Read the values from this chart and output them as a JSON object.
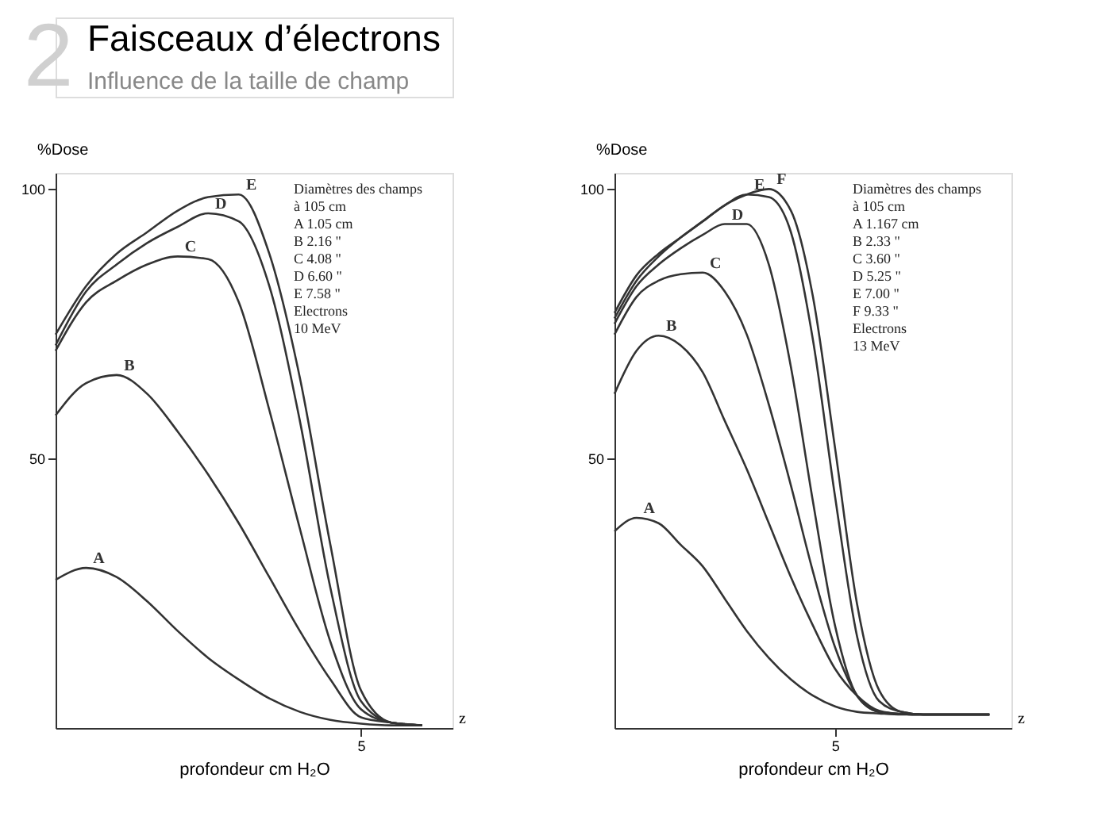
{
  "chart_data": [
    {
      "type": "line",
      "title": "Faisceaux d’électrons",
      "subtitle": "Influence de la taille de champ",
      "ylabel": "%Dose",
      "xlabel": "profondeur cm H₂O",
      "ylim": [
        0,
        103
      ],
      "yticks": [
        50,
        100
      ],
      "grid": false,
      "marker": "none",
      "line_style": "solid",
      "categories": [
        null,
        null,
        null,
        null,
        null,
        null,
        null,
        null,
        null,
        null,
        "5",
        null,
        null,
        null
      ],
      "annotations": [
        "2",
        "Diamètres des champs",
        "à 105 cm",
        "A   1.05  cm",
        "B   2.16   \"",
        "C   4.08   \"",
        "D   6.60   \"",
        "E   7.58   \"",
        "Electrons",
        "10 MeV",
        "z"
      ],
      "series": [
        {
          "name": "A",
          "color": "#333333",
          "values": [
            27.5,
            29.7,
            28,
            23.5,
            18,
            13,
            9,
            5.5,
            3,
            1.5,
            0.8,
            0.5,
            0.5,
            null
          ]
        },
        {
          "name": "B",
          "color": "#333333",
          "values": [
            58,
            64,
            65.5,
            62,
            55,
            47,
            38,
            28,
            18,
            9,
            2,
            1,
            0.5,
            null
          ]
        },
        {
          "name": "C",
          "color": "#333333",
          "values": [
            70,
            79,
            83,
            86,
            87.5,
            87,
            79,
            59,
            37,
            16,
            3.5,
            1,
            0.5,
            null
          ]
        },
        {
          "name": "D",
          "color": "#333333",
          "values": [
            71,
            81,
            86,
            90,
            93,
            95.5,
            94,
            82,
            57,
            26,
            5,
            1,
            0.5,
            null
          ]
        },
        {
          "name": "E",
          "color": "#333333",
          "values": [
            73,
            82,
            88,
            92,
            96,
            98.5,
            99,
            88,
            65,
            34,
            7,
            1,
            0.5,
            null
          ]
        }
      ]
    },
    {
      "type": "line",
      "ylabel": "%Dose",
      "xlabel": "profondeur cm H₂O",
      "ylim": [
        0,
        103
      ],
      "yticks": [
        50,
        100
      ],
      "grid": false,
      "marker": "none",
      "line_style": "solid",
      "categories": [
        null,
        null,
        null,
        null,
        null,
        null,
        null,
        null,
        null,
        null,
        "5",
        null,
        null,
        null,
        null,
        null,
        null,
        null,
        null
      ],
      "annotations": [
        "Diamètres des champs",
        "à 105 cm",
        "A   1.167  cm",
        "B   2.33    \"",
        "C   3.60    \"",
        "D   5.25    \"",
        "E   7.00    \"",
        "F   9.33    \"",
        "Electrons",
        "13 MeV",
        "z"
      ],
      "series": [
        {
          "name": "A",
          "color": "#333333",
          "values": [
            36.5,
            39,
            38,
            34,
            30,
            24,
            18,
            13,
            9,
            6,
            4,
            3,
            2.7,
            2.5,
            2.5,
            2.5,
            2.5,
            2.5,
            null
          ]
        },
        {
          "name": "B",
          "color": "#333333",
          "values": [
            62,
            70,
            72.8,
            71,
            66,
            57,
            48,
            38,
            28,
            19,
            11,
            6,
            3.2,
            2.6,
            2.5,
            2.5,
            2.5,
            2.5,
            null
          ]
        },
        {
          "name": "C",
          "color": "#333333",
          "values": [
            73,
            80,
            83,
            84.2,
            84.5,
            81,
            73,
            60,
            45,
            29,
            15,
            6,
            3,
            2.6,
            2.5,
            2.5,
            2.5,
            2.5,
            null
          ]
        },
        {
          "name": "D",
          "color": "#333333",
          "values": [
            75,
            82,
            86,
            89,
            91.5,
            93.5,
            93.5,
            86,
            67,
            42,
            19,
            6,
            3,
            2.6,
            2.5,
            2.5,
            2.5,
            2.5,
            null
          ]
        },
        {
          "name": "E",
          "color": "#333333",
          "values": [
            76,
            83,
            87.5,
            91,
            94,
            97,
            99,
            98.5,
            92,
            72,
            43,
            17,
            5,
            3,
            2.5,
            2.5,
            2.5,
            2.5,
            null
          ]
        },
        {
          "name": "F",
          "color": "#333333",
          "values": [
            77,
            84,
            88,
            91,
            94,
            97,
            99,
            100,
            96,
            80,
            52,
            23,
            7,
            3,
            2.5,
            2.5,
            2.5,
            2.5,
            null
          ]
        }
      ]
    }
  ]
}
